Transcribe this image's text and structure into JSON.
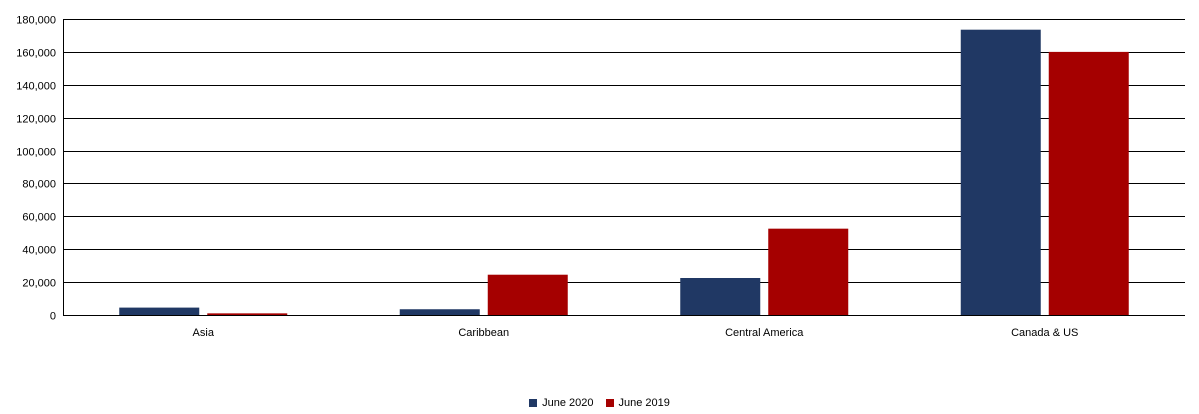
{
  "chart_data": {
    "type": "bar",
    "title": "",
    "xlabel": "",
    "ylabel": "",
    "categories": [
      "Asia",
      "Caribbean",
      "Central America",
      "Canada & US"
    ],
    "series": [
      {
        "name": "June 2020",
        "color": "#203864",
        "values": [
          4500,
          3500,
          22500,
          173500
        ]
      },
      {
        "name": "June 2019",
        "color": "#a50000",
        "values": [
          1000,
          24500,
          52500,
          160000
        ]
      }
    ],
    "ylim": [
      0,
      180000
    ],
    "yticks": [
      0,
      20000,
      40000,
      60000,
      80000,
      100000,
      120000,
      140000,
      160000,
      180000
    ],
    "ytick_labels": [
      "0",
      "20,000",
      "40,000",
      "60,000",
      "80,000",
      "100,000",
      "120,000",
      "140,000",
      "160,000",
      "180,000"
    ],
    "grid": true,
    "legend_position": "bottom"
  }
}
